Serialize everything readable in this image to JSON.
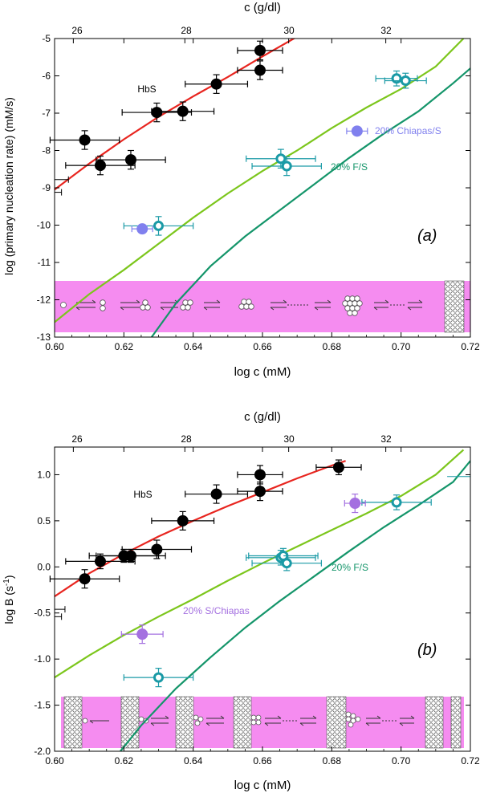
{
  "colors": {
    "red_curve": "#e8251f",
    "light_green_curve": "#7cc61c",
    "dark_green_curve": "#14956a",
    "hbs_marker": "#000000",
    "teal_marker": "#1a9aa6",
    "chiapas_marker_a": "#8080ee",
    "chiapas_marker_b": "#a470e0",
    "inset_band": "#f58cf0"
  },
  "chart_data": [
    {
      "type": "scatter",
      "panel_label": "(a)",
      "xlabel": "log c (mM)",
      "top_xlabel": "c (g/dl)",
      "ylabel": "log (primary nucleation rate) (mM/s)",
      "xlim": [
        0.6,
        0.72
      ],
      "ylim": [
        -13,
        -5
      ],
      "x_ticks": [
        "0.60",
        "0.62",
        "0.64",
        "0.66",
        "0.68",
        "0.70",
        "0.72"
      ],
      "y_ticks": [
        "-13",
        "-12",
        "-11",
        "-10",
        "-9",
        "-8",
        "-7",
        "-6",
        "-5"
      ],
      "top_ticks": [
        "26",
        "28",
        "30",
        "32"
      ],
      "inset": "schematic: monomers add stepwise to form a critical nucleus that grows into a polymer fiber",
      "series": [
        {
          "name": "HbS",
          "marker": "filled-black",
          "points": [
            {
              "x": 0.6087,
              "y": -7.72,
              "xerr": 0.01,
              "yerr": 0.25
            },
            {
              "x": 0.6132,
              "y": -8.4,
              "xerr": 0.01,
              "yerr": 0.25
            },
            {
              "x": 0.622,
              "y": -8.25,
              "xerr": 0.01,
              "yerr": 0.25
            },
            {
              "x": 0.6295,
              "y": -6.98,
              "xerr": 0.01,
              "yerr": 0.25
            },
            {
              "x": 0.637,
              "y": -6.95,
              "xerr": 0.009,
              "yerr": 0.25
            },
            {
              "x": 0.6467,
              "y": -6.22,
              "xerr": 0.009,
              "yerr": 0.25
            },
            {
              "x": 0.6593,
              "y": -5.32,
              "xerr": 0.0065,
              "yerr": 0.25
            },
            {
              "x": 0.6593,
              "y": -5.85,
              "xerr": 0.0065,
              "yerr": 0.25
            }
          ],
          "fragments": [
            {
              "x": 0.6,
              "y": -8.78,
              "x2": 0.604
            },
            {
              "x": 0.6,
              "y": -9.12,
              "x2": 0.602
            }
          ]
        },
        {
          "name": "20% F/S",
          "marker": "open-teal",
          "points": [
            {
              "x": 0.63,
              "y": -10.02,
              "xerr": 0.01,
              "yerr": 0.25
            },
            {
              "x": 0.6653,
              "y": -8.22,
              "xerr": 0.01,
              "yerr": 0.25
            },
            {
              "x": 0.667,
              "y": -8.42,
              "xerr": 0.01,
              "yerr": 0.25
            },
            {
              "x": 0.6987,
              "y": -6.07,
              "xerr": 0.006,
              "yerr": 0.2
            },
            {
              "x": 0.7013,
              "y": -6.13,
              "xerr": 0.006,
              "yerr": 0.2
            }
          ]
        },
        {
          "name": "20% Chiapas/S",
          "marker": "filled-blue",
          "points": [
            {
              "x": 0.6253,
              "y": -10.1,
              "xerr": 0.003,
              "yerr": 0
            },
            {
              "x": 0.6873,
              "y": -7.48,
              "xerr": 0.003,
              "yerr": 0
            }
          ]
        }
      ],
      "annotations": [
        {
          "text": "HbS",
          "x": 0.6267,
          "y": -6.7
        },
        {
          "text": "20% Chiapas/S",
          "x": 0.692,
          "y": -7.48
        },
        {
          "text": "20% F/S",
          "x": 0.6767,
          "y": -8.55
        }
      ],
      "curves": [
        {
          "color": "red",
          "points": [
            [
              0.6,
              -9.05
            ],
            [
              0.61,
              -8.35
            ],
            [
              0.62,
              -7.7
            ],
            [
              0.63,
              -7.1
            ],
            [
              0.64,
              -6.55
            ],
            [
              0.65,
              -6.03
            ],
            [
              0.66,
              -5.48
            ],
            [
              0.67,
              -4.95
            ]
          ]
        },
        {
          "color": "light-green",
          "points": [
            [
              0.6,
              -12.6
            ],
            [
              0.61,
              -11.85
            ],
            [
              0.62,
              -11.2
            ],
            [
              0.63,
              -10.5
            ],
            [
              0.64,
              -9.8
            ],
            [
              0.65,
              -9.15
            ],
            [
              0.66,
              -8.55
            ],
            [
              0.67,
              -8.0
            ],
            [
              0.68,
              -7.4
            ],
            [
              0.69,
              -6.85
            ],
            [
              0.7,
              -6.35
            ],
            [
              0.71,
              -5.75
            ],
            [
              0.718,
              -5.0
            ]
          ]
        },
        {
          "color": "dark-green",
          "points": [
            [
              0.628,
              -13.0
            ],
            [
              0.635,
              -12.1
            ],
            [
              0.645,
              -11.1
            ],
            [
              0.655,
              -10.3
            ],
            [
              0.665,
              -9.6
            ],
            [
              0.675,
              -8.9
            ],
            [
              0.685,
              -8.2
            ],
            [
              0.695,
              -7.55
            ],
            [
              0.705,
              -6.95
            ],
            [
              0.715,
              -6.2
            ],
            [
              0.72,
              -5.8
            ]
          ]
        }
      ]
    },
    {
      "type": "scatter",
      "panel_label": "(b)",
      "xlabel": "log c (mM)",
      "top_xlabel": "c (g/dl)",
      "ylabel": "log B (s-1)",
      "xlim": [
        0.6,
        0.72
      ],
      "ylim": [
        -2.0,
        1.3
      ],
      "x_ticks": [
        "0.60",
        "0.62",
        "0.64",
        "0.66",
        "0.68",
        "0.70",
        "0.72"
      ],
      "y_ticks": [
        "-2.0",
        "-1.5",
        "-1.0",
        "-0.5",
        "0.0",
        "0.5",
        "1.0"
      ],
      "top_ticks": [
        "26",
        "28",
        "30",
        "32"
      ],
      "inset": "schematic: monomers add onto the surface of an existing polymer fiber to nucleate a new fiber (heterogeneous nucleation)",
      "series": [
        {
          "name": "HbS",
          "marker": "filled-black",
          "points": [
            {
              "x": 0.6087,
              "y": -0.13,
              "xerr": 0.01,
              "yerr": 0.1
            },
            {
              "x": 0.6132,
              "y": 0.06,
              "xerr": 0.01,
              "yerr": 0.08
            },
            {
              "x": 0.62,
              "y": 0.12,
              "xerr": 0.01,
              "yerr": 0.07
            },
            {
              "x": 0.622,
              "y": 0.12,
              "xerr": 0.01,
              "yerr": 0.07
            },
            {
              "x": 0.6295,
              "y": 0.19,
              "xerr": 0.01,
              "yerr": 0.1
            },
            {
              "x": 0.637,
              "y": 0.5,
              "xerr": 0.009,
              "yerr": 0.1
            },
            {
              "x": 0.6467,
              "y": 0.79,
              "xerr": 0.009,
              "yerr": 0.1
            },
            {
              "x": 0.6593,
              "y": 1.0,
              "xerr": 0.0065,
              "yerr": 0.1
            },
            {
              "x": 0.6593,
              "y": 0.82,
              "xerr": 0.0065,
              "yerr": 0.1
            },
            {
              "x": 0.682,
              "y": 1.08,
              "xerr": 0.0065,
              "yerr": 0.08
            }
          ],
          "fragments": [
            {
              "x": 0.6,
              "y": -0.46,
              "x2": 0.603
            },
            {
              "x": 0.6,
              "y": -0.54,
              "x2": 0.602
            }
          ]
        },
        {
          "name": "20% F/S",
          "marker": "open-teal",
          "points": [
            {
              "x": 0.63,
              "y": -1.2,
              "xerr": 0.01,
              "yerr": 0.1
            },
            {
              "x": 0.6653,
              "y": 0.1,
              "xerr": 0.01,
              "yerr": 0.08
            },
            {
              "x": 0.666,
              "y": 0.12,
              "xerr": 0.01,
              "yerr": 0.08
            },
            {
              "x": 0.667,
              "y": 0.04,
              "xerr": 0.01,
              "yerr": 0.08
            },
            {
              "x": 0.6987,
              "y": 0.7,
              "xerr": 0.01,
              "yerr": 0.08
            }
          ],
          "fragments": [
            {
              "x": 0.7133,
              "y": 0.98,
              "x2": 0.72
            }
          ]
        },
        {
          "name": "20% S/Chiapas",
          "marker": "filled-purple",
          "points": [
            {
              "x": 0.6253,
              "y": -0.73,
              "xerr": 0.006,
              "yerr": 0.1
            },
            {
              "x": 0.6867,
              "y": 0.69,
              "xerr": 0.003,
              "yerr": 0.1
            }
          ]
        }
      ],
      "annotations": [
        {
          "text": "HbS",
          "x": 0.626,
          "y": 0.64
        },
        {
          "text": "20% F/S",
          "x": 0.6812,
          "y": 0.04
        },
        {
          "text": "20% S/Chiapas",
          "x": 0.6368,
          "y": -0.73
        }
      ],
      "curves": [
        {
          "color": "red",
          "points": [
            [
              0.6,
              -0.32
            ],
            [
              0.61,
              -0.07
            ],
            [
              0.62,
              0.14
            ],
            [
              0.63,
              0.33
            ],
            [
              0.64,
              0.5
            ],
            [
              0.65,
              0.66
            ],
            [
              0.66,
              0.81
            ],
            [
              0.67,
              0.96
            ],
            [
              0.68,
              1.1
            ],
            [
              0.684,
              1.15
            ]
          ]
        },
        {
          "color": "light-green",
          "points": [
            [
              0.6,
              -1.2
            ],
            [
              0.61,
              -0.96
            ],
            [
              0.62,
              -0.74
            ],
            [
              0.63,
              -0.54
            ],
            [
              0.64,
              -0.35
            ],
            [
              0.65,
              -0.15
            ],
            [
              0.66,
              0.04
            ],
            [
              0.67,
              0.22
            ],
            [
              0.68,
              0.4
            ],
            [
              0.69,
              0.58
            ],
            [
              0.7,
              0.77
            ],
            [
              0.71,
              1.0
            ],
            [
              0.718,
              1.27
            ]
          ]
        },
        {
          "color": "dark-green",
          "points": [
            [
              0.619,
              -2.0
            ],
            [
              0.625,
              -1.72
            ],
            [
              0.635,
              -1.32
            ],
            [
              0.645,
              -0.98
            ],
            [
              0.655,
              -0.66
            ],
            [
              0.665,
              -0.37
            ],
            [
              0.675,
              -0.1
            ],
            [
              0.685,
              0.17
            ],
            [
              0.695,
              0.43
            ],
            [
              0.705,
              0.67
            ],
            [
              0.715,
              0.92
            ],
            [
              0.72,
              1.15
            ]
          ]
        }
      ]
    }
  ]
}
